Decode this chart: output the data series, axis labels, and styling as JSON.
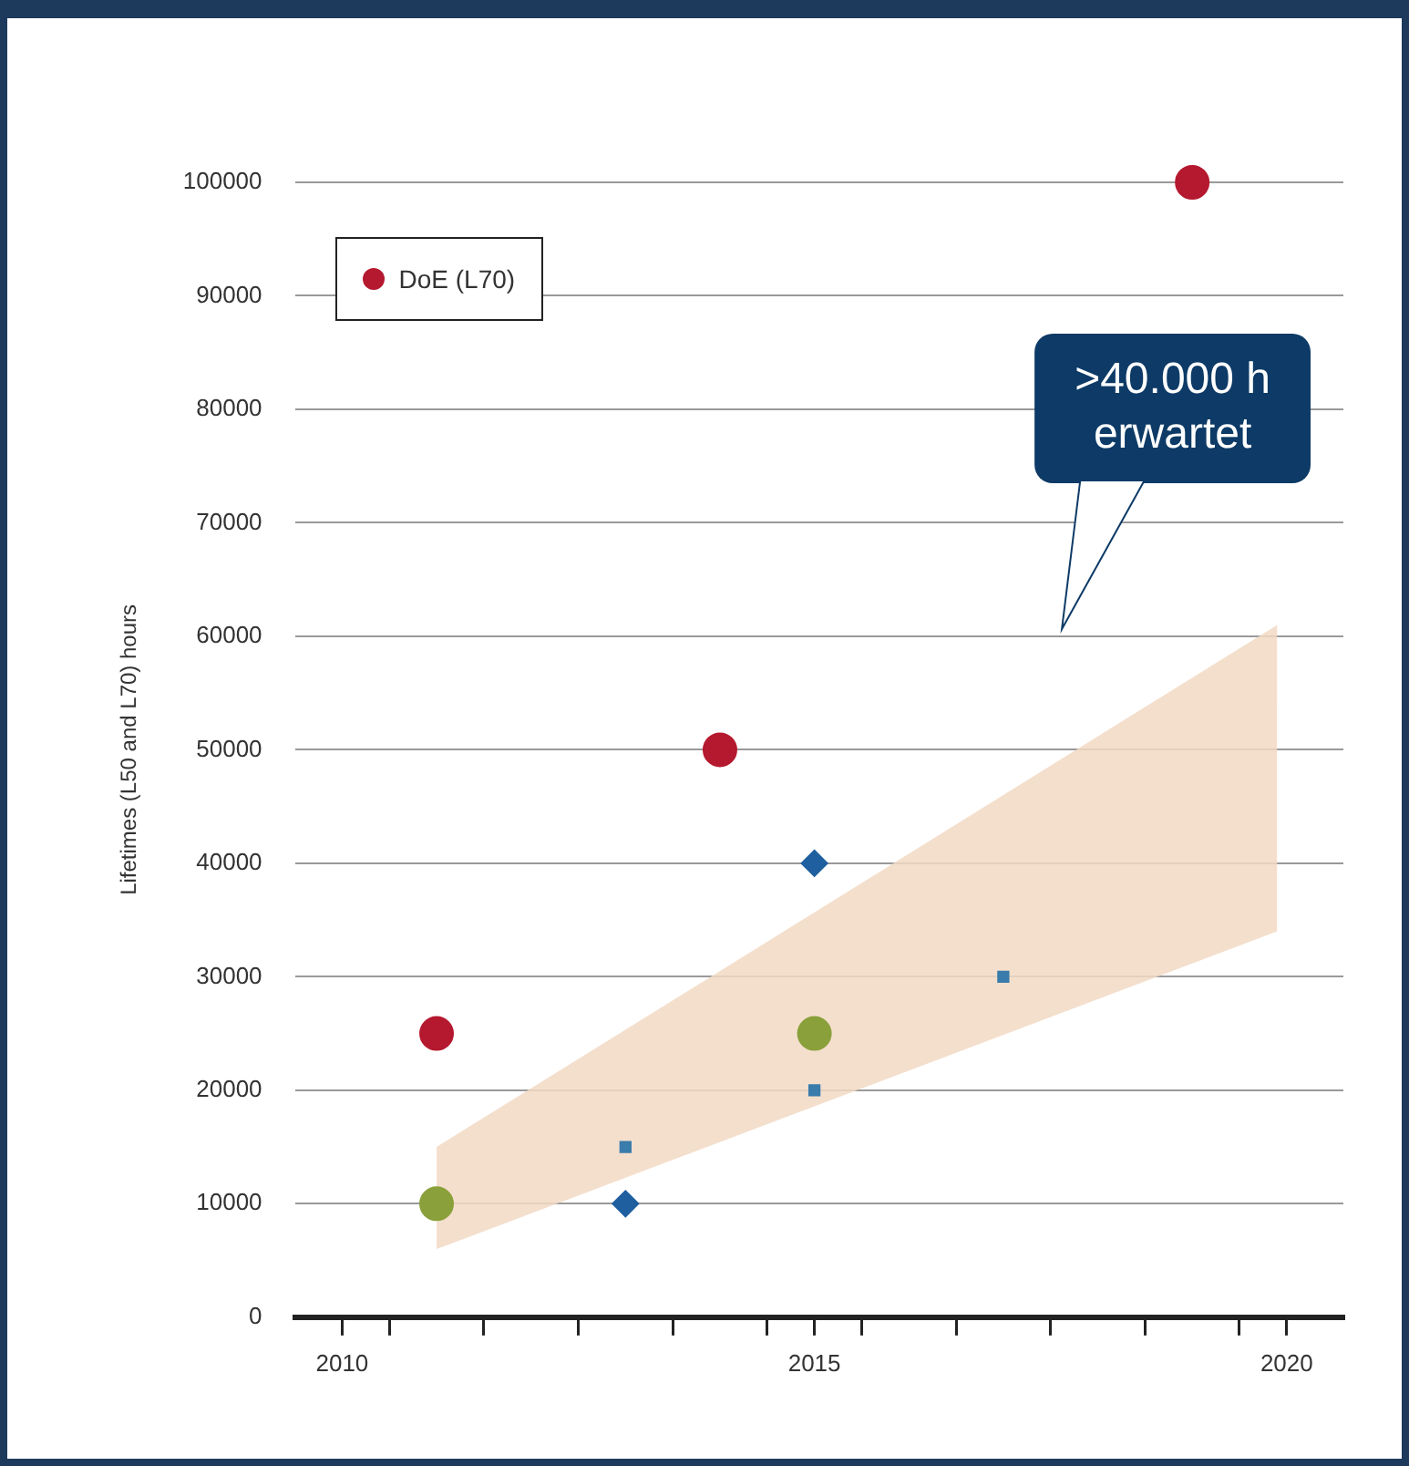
{
  "chart_data": {
    "type": "scatter",
    "ylabel": "Lifetimes (L50 and L70) hours",
    "xlim": [
      2009.5,
      2020.6
    ],
    "xticks": [
      2010,
      {
        "value": 2010.5,
        "label": null
      },
      {
        "value": 2011.5,
        "label": null
      },
      {
        "value": 2012.5,
        "label": null
      },
      {
        "value": 2013.5,
        "label": null
      },
      {
        "value": 2014.5,
        "label": null
      },
      2015,
      {
        "value": 2015.5,
        "label": null
      },
      {
        "value": 2016.5,
        "label": null
      },
      {
        "value": 2017.5,
        "label": null
      },
      {
        "value": 2018.5,
        "label": null
      },
      {
        "value": 2019.5,
        "label": null
      },
      2020
    ],
    "ylim": [
      0,
      100000
    ],
    "yticks": [
      0,
      10000,
      20000,
      30000,
      40000,
      50000,
      60000,
      70000,
      80000,
      90000,
      100000
    ],
    "grid": "y",
    "legend": "top left",
    "series": [
      {
        "type": "area",
        "color": "#f2d9c4",
        "x": [
          2011,
          2019.9
        ],
        "values": [
          null,
          null
        ],
        "lower": [
          6000,
          34000
        ],
        "upper": [
          15000,
          61000
        ]
      },
      {
        "name": "DoE (L70)",
        "color": "#b5192f",
        "marker": "circle",
        "x": [
          2011,
          2014,
          2019
        ],
        "values": [
          25000,
          50000,
          100000
        ]
      },
      {
        "color": "#3a7cab",
        "marker": "square",
        "x": [
          2013,
          2015,
          2017
        ],
        "values": [
          15000,
          20000,
          30000
        ]
      },
      {
        "color": "#1f5fa0",
        "marker": "diamond",
        "x": [
          2013,
          2015
        ],
        "values": [
          10000,
          40000
        ]
      },
      {
        "color": "#8aa03a",
        "marker": "circle",
        "x": [
          2011,
          2015
        ],
        "values": [
          10000,
          25000
        ]
      }
    ],
    "annotations": [
      ">40.000 h\nerwartet"
    ]
  }
}
